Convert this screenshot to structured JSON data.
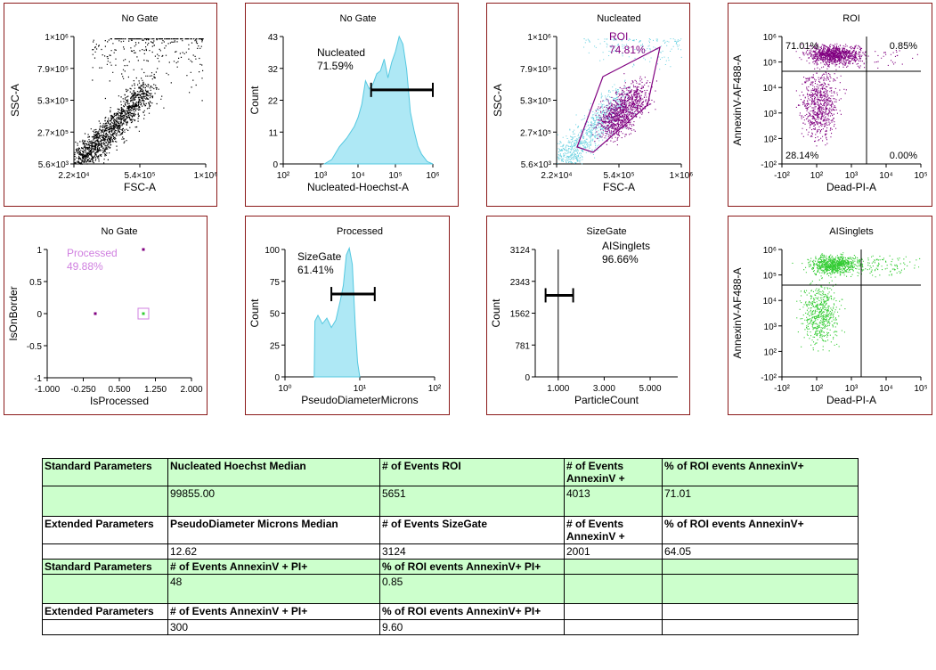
{
  "colors": {
    "border": "#8b1a1a",
    "black": "#000000",
    "purple": "#800080",
    "cyan": "#66d0e0",
    "green": "#33cc33",
    "hist_fill": "#aee8f5",
    "hist_line": "#55c8e0",
    "light_purple": "#d080e0"
  },
  "chart_data": [
    {
      "id": "p1",
      "type": "scatter",
      "title": "No Gate",
      "xlabel": "FSC-A",
      "ylabel": "SSC-A",
      "xticks": [
        "2.2×10⁴",
        "5.4×10⁵",
        "1×10⁶"
      ],
      "yticks": [
        "1×10⁶",
        "7.9×10⁵",
        "5.3×10⁵",
        "2.7×10⁵",
        "5.6×10³"
      ],
      "xlim": [
        22000,
        1000000
      ],
      "ylim": [
        5600,
        1000000
      ]
    },
    {
      "id": "p2",
      "type": "area",
      "title": "No Gate",
      "xlabel": "Nucleated-Hoechst-A",
      "ylabel": "Count",
      "xticks": [
        "10²",
        "10³",
        "10⁴",
        "10⁵",
        "10⁶"
      ],
      "yticks": [
        "43",
        "32",
        "22",
        "11",
        "0"
      ],
      "xlim": [
        2,
        6
      ],
      "ylim": [
        0,
        43
      ],
      "x": [
        3.1,
        3.3,
        3.5,
        3.7,
        3.9,
        4.0,
        4.1,
        4.2,
        4.3,
        4.4,
        4.5,
        4.6,
        4.7,
        4.8,
        4.9,
        5.0,
        5.1,
        5.2,
        5.3,
        5.4,
        5.5,
        5.6,
        5.7,
        5.85,
        6.0
      ],
      "values": [
        0,
        2,
        6,
        9,
        13,
        16,
        20,
        28,
        25,
        27,
        30,
        32,
        35,
        29,
        34,
        38,
        43,
        40,
        32,
        18,
        11,
        6,
        3,
        1,
        0
      ],
      "gate": {
        "label": "Nucleated",
        "pct": "71.59%",
        "from": 4.35,
        "to": 6.0,
        "level": 25
      }
    },
    {
      "id": "p3",
      "type": "scatter",
      "title": "Nucleated",
      "xlabel": "FSC-A",
      "ylabel": "SSC-A",
      "xticks": [
        "2.2×10⁴",
        "5.4×10⁵",
        "1×10⁶"
      ],
      "yticks": [
        "1×10⁶",
        "7.9×10⁵",
        "5.3×10⁵",
        "2.7×10⁵",
        "5.6×10³"
      ],
      "gate": {
        "label": "ROI",
        "pct": "74.81%"
      }
    },
    {
      "id": "p4",
      "type": "scatter",
      "title": "ROI",
      "xlabel": "Dead-PI-A",
      "ylabel": "AnnexinV-AF488-A",
      "xticks": [
        "-10²",
        "10²",
        "10³",
        "10⁴",
        "10⁵"
      ],
      "yticks": [
        "10⁶",
        "10⁵",
        "10⁴",
        "10³",
        "10²",
        "-10²"
      ],
      "quadrants": [
        "71.01%",
        "0.85%",
        "28.14%",
        "0.00%"
      ]
    },
    {
      "id": "p5",
      "type": "scatter",
      "title": "No Gate",
      "xlabel": "IsProcessed",
      "ylabel": "IsOnBorder",
      "xticks": [
        "-1.000",
        "-0.250",
        "0.500",
        "1.250",
        "2.000"
      ],
      "yticks": [
        "1",
        "0.5",
        "0",
        "-0.5",
        "-1"
      ],
      "xlim": [
        -1,
        2
      ],
      "ylim": [
        -1,
        1
      ],
      "points": [
        {
          "x": 0,
          "y": 0,
          "c": "purple"
        },
        {
          "x": 1,
          "y": 1,
          "c": "purple"
        },
        {
          "x": 1,
          "y": 0,
          "c": "green"
        }
      ],
      "gate": {
        "label": "Processed",
        "pct": "49.88%"
      }
    },
    {
      "id": "p6",
      "type": "area",
      "title": "Processed",
      "xlabel": "PseudoDiameterMicrons",
      "ylabel": "Count",
      "xticks": [
        "10⁰",
        "10¹",
        "10²"
      ],
      "yticks": [
        "100",
        "75",
        "50",
        "25",
        "0"
      ],
      "xlim": [
        0,
        2
      ],
      "ylim": [
        0,
        100
      ],
      "x": [
        0.39,
        0.4,
        0.44,
        0.5,
        0.56,
        0.62,
        0.68,
        0.74,
        0.78,
        0.82,
        0.86,
        0.9,
        0.94,
        0.97,
        1.0
      ],
      "values": [
        0,
        43,
        48,
        42,
        45,
        38,
        45,
        60,
        72,
        95,
        100,
        88,
        40,
        12,
        0
      ],
      "gate": {
        "label": "SizeGate",
        "pct": "61.41%",
        "from": 0.62,
        "to": 1.2,
        "level": 65
      }
    },
    {
      "id": "p7",
      "type": "area",
      "title": "SizeGate",
      "xlabel": "ParticleCount",
      "ylabel": "Count",
      "xticks": [
        "1.000",
        "3.000",
        "5.000"
      ],
      "yticks": [
        "3124",
        "2343",
        "1562",
        "781",
        "0"
      ],
      "xlim": [
        0,
        6200
      ],
      "ylim": [
        0,
        3124
      ],
      "spike_x": 1000,
      "gate": {
        "label": "AISinglets",
        "pct": "96.66%",
        "from": 450,
        "to": 1650,
        "level": 2000
      }
    },
    {
      "id": "p8",
      "type": "scatter",
      "title": "AISinglets",
      "xlabel": "Dead-PI-A",
      "ylabel": "AnnexinV-AF488-A",
      "xticks": [
        "-10²",
        "10²",
        "10³",
        "10⁴",
        "10⁵"
      ],
      "yticks": [
        "10⁶",
        "10⁵",
        "10⁴",
        "10³",
        "10²",
        "-10²"
      ]
    }
  ],
  "table": {
    "rows": [
      [
        "Standard Parameters",
        "Nucleated Hoechst Median",
        "# of Events ROI",
        "# of Events AnnexinV +",
        "% of ROI events AnnexinV+"
      ],
      [
        "",
        "99855.00",
        "5651",
        "4013",
        "71.01"
      ],
      [
        "Extended Parameters",
        "PseudoDiameter Microns Median",
        "# of Events SizeGate",
        "# of Events AnnexinV +",
        "% of ROI events AnnexinV+"
      ],
      [
        "",
        "12.62",
        "3124",
        "2001",
        "64.05"
      ],
      [
        "Standard Parameters",
        "# of Events AnnexinV + PI+",
        "% of ROI events AnnexinV+ PI+",
        "",
        ""
      ],
      [
        "",
        "48",
        "0.85",
        "",
        ""
      ],
      [
        "Extended Parameters",
        "# of Events AnnexinV + PI+",
        "% of ROI events AnnexinV+ PI+",
        "",
        ""
      ],
      [
        "",
        "300",
        "9.60",
        "",
        ""
      ]
    ]
  }
}
